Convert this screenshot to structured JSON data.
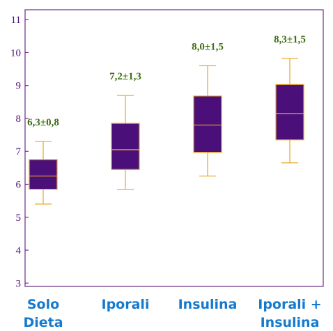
{
  "chart_data": {
    "type": "boxplot",
    "categories": [
      [
        "Solo",
        "Dieta"
      ],
      [
        "Iporali"
      ],
      [
        "Insulina"
      ],
      [
        "Iporali +",
        "Insulina"
      ]
    ],
    "series": [
      {
        "boxes": [
          {
            "whisker_low": 5.4,
            "q1": 5.85,
            "median": 6.25,
            "q3": 6.75,
            "whisker_high": 7.3,
            "label": "6,3±0,8"
          },
          {
            "whisker_low": 5.85,
            "q1": 6.45,
            "median": 7.05,
            "q3": 7.85,
            "whisker_high": 8.7,
            "label": "7,2±1,3"
          },
          {
            "whisker_low": 6.25,
            "q1": 6.97,
            "median": 7.8,
            "q3": 8.68,
            "whisker_high": 9.6,
            "label": "8,0±1,5"
          },
          {
            "whisker_low": 6.65,
            "q1": 7.35,
            "median": 8.15,
            "q3": 9.03,
            "whisker_high": 9.82,
            "label": "8,3±1,5"
          }
        ]
      }
    ],
    "ylim": [
      2.9,
      11.3
    ],
    "yticks": [
      3,
      4,
      5,
      6,
      7,
      8,
      9,
      10,
      11
    ],
    "grid": false,
    "colors": {
      "box_fill": "#4b0f7a",
      "box_stroke": "#e8a520",
      "whisker": "#e8a520",
      "frame": "#6a2b8a",
      "tick_label": "#4b0f7a",
      "data_label": "#3c6e12",
      "category_label": "#1479cf"
    }
  }
}
